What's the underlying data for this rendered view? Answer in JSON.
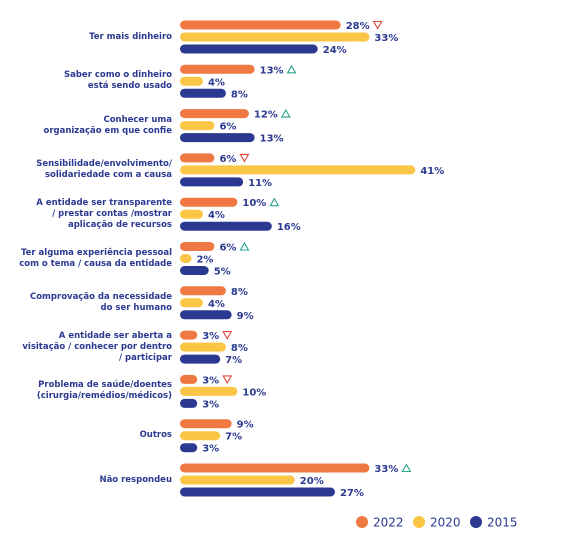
{
  "chart_data": {
    "type": "bar",
    "orientation": "horizontal",
    "categories": [
      "Ter mais dinheiro",
      "Saber como o dinheiro\nestá sendo usado",
      "Conhecer uma\norganização em que confie",
      "Sensibilidade/envolvimento/\nsolidariedade com a causa",
      "A entidade ser transparente\n/ prestar contas /mostrar\naplicação de recursos",
      "Ter alguma experiência pessoal\ncom o tema / causa da entidade",
      "Comprovação da necessidade\ndo ser humano",
      "A entidade ser aberta a\nvisitação / conhecer por dentro\n/ participar",
      "Problema de saúde/doentes\n(cirurgia/remédios/médicos)",
      "Outros",
      "Não respondeu"
    ],
    "series": [
      {
        "name": "2022",
        "color": "#f07843",
        "values": [
          28,
          13,
          12,
          6,
          10,
          6,
          8,
          3,
          3,
          9,
          33
        ],
        "value_labels": [
          "28%",
          "13%",
          "12%",
          "6%",
          "10%",
          "6%",
          "8%",
          "3%",
          "3%",
          "9%",
          "33%"
        ],
        "trends": [
          "down",
          "up",
          "up",
          "down",
          "up",
          "up",
          null,
          "down",
          "down",
          null,
          "up"
        ]
      },
      {
        "name": "2020",
        "color": "#fbc545",
        "values": [
          33,
          4,
          6,
          41,
          4,
          2,
          4,
          8,
          10,
          7,
          20
        ],
        "value_labels": [
          "33%",
          "4%",
          "6%",
          "41%",
          "4%",
          "2%",
          "4%",
          "8%",
          "10%",
          "7%",
          "20%"
        ]
      },
      {
        "name": "2015",
        "color": "#2b3990",
        "values": [
          24,
          8,
          13,
          11,
          16,
          5,
          9,
          7,
          3,
          3,
          27
        ],
        "value_labels": [
          "24%",
          "8%",
          "13%",
          "11%",
          "16%",
          "5%",
          "9%",
          "7%",
          "3%",
          "3%",
          "27%"
        ]
      }
    ]
  }
}
